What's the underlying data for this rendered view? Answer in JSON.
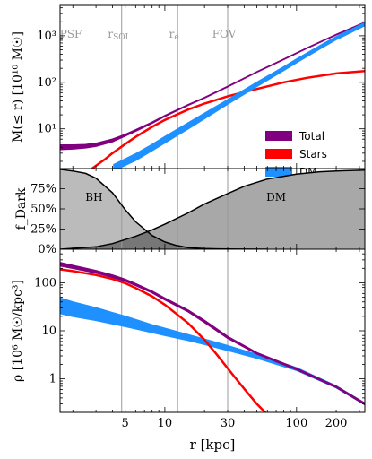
{
  "chart_data": {
    "type": "line",
    "xlabel": "r [kpc]",
    "x_scale": "log",
    "xlim": [
      1.6,
      330
    ],
    "x_ticks": [
      {
        "value": 5,
        "label": "5"
      },
      {
        "value": 10,
        "label": "10"
      },
      {
        "value": 30,
        "label": "30"
      },
      {
        "value": 100,
        "label": "100"
      },
      {
        "value": 200,
        "label": "200"
      }
    ],
    "vertical_lines": [
      {
        "x": 4.7,
        "label": ""
      },
      {
        "x": 12.5,
        "label": ""
      },
      {
        "x": 30,
        "label": ""
      }
    ],
    "vertical_line_labels": [
      {
        "x": 1.75,
        "label": "PSF"
      },
      {
        "x": 4.7,
        "label": "r",
        "sub": "SOI"
      },
      {
        "x": 12.5,
        "label": "r",
        "sub": "e"
      },
      {
        "x": 30,
        "label": "FOV"
      }
    ],
    "colors": {
      "total": "#800080",
      "stars": "#ff0000",
      "dm": "#1e90ff",
      "fill_bh": "#bbbbbb",
      "fill_dm": "#a8a8a8",
      "overlap": "#777777"
    },
    "legend": {
      "placement": "lower-right of top panel",
      "entries": [
        {
          "key": "total",
          "label": "Total"
        },
        {
          "key": "stars",
          "label": "Stars"
        },
        {
          "key": "dm",
          "label": "DM"
        }
      ]
    },
    "panels": [
      {
        "id": "mass",
        "ylabel": "M(≤ r) [10¹⁰ M☉]",
        "y_scale": "log",
        "ylim": [
          1.4,
          4500
        ],
        "y_ticks": [
          {
            "value": 10,
            "label": "10¹"
          },
          {
            "value": 100,
            "label": "10²"
          },
          {
            "value": 1000,
            "label": "10³"
          }
        ],
        "series": [
          {
            "key": "total",
            "name": "Total",
            "band": true,
            "x": [
              1.6,
              2,
              2.5,
              3,
              4,
              5,
              6,
              8,
              10,
              15,
              20,
              30,
              50,
              80,
              120,
              200,
              330
            ],
            "lo": [
              3.6,
              3.7,
              3.9,
              4.2,
              5.3,
              7.0,
              8.9,
              13.2,
              18.5,
              32,
              46,
              80,
              165,
              310,
              540,
              1050,
              1900
            ],
            "hi": [
              4.5,
              4.5,
              4.6,
              4.9,
              6.0,
              7.6,
              9.5,
              13.9,
              19.3,
              33,
              47,
              82,
              168,
              315,
              550,
              1070,
              1950
            ]
          },
          {
            "key": "stars",
            "name": "Stars",
            "band": false,
            "x": [
              2.8,
              3.5,
              4,
              5,
              6,
              8,
              10,
              15,
              20,
              30,
              50,
              80,
              120,
              200,
              330
            ],
            "y": [
              1.4,
              2.2,
              3.0,
              4.7,
              6.7,
              11,
              15.5,
              26,
              35,
              50,
              72,
              100,
              125,
              155,
              175
            ]
          },
          {
            "key": "dm",
            "name": "DM",
            "band": true,
            "x": [
              4.1,
              5,
              6,
              8,
              10,
              15,
              20,
              30,
              50,
              80,
              100,
              150,
              200,
              330
            ],
            "lo": [
              1.25,
              1.65,
              2.1,
              3.4,
              5.0,
              10,
              16.5,
              34,
              82,
              180,
              265,
              520,
              830,
              1650
            ],
            "hi": [
              1.7,
              2.25,
              2.9,
              4.6,
              6.8,
              13.4,
              21.5,
              42,
              100,
              215,
              315,
              610,
              960,
              1900
            ]
          }
        ]
      },
      {
        "id": "fraction",
        "ylabel": "f_Dark",
        "y_scale": "linear",
        "ylim": [
          0,
          1
        ],
        "y_ticks": [
          {
            "value": 0,
            "label": "0%"
          },
          {
            "value": 0.25,
            "label": "25%"
          },
          {
            "value": 0.5,
            "label": "50%"
          },
          {
            "value": 0.75,
            "label": "75%"
          }
        ],
        "annotations": [
          {
            "text": "BH",
            "x": 2.9,
            "y": 0.6
          },
          {
            "text": "DM",
            "x": 70,
            "y": 0.6
          }
        ],
        "series": [
          {
            "key": "bh",
            "name": "BH",
            "x": [
              1.6,
              2,
              2.5,
              3,
              4,
              5,
              6,
              8,
              10,
              12,
              15,
              20,
              25,
              30,
              40,
              60
            ],
            "y": [
              0.99,
              0.97,
              0.94,
              0.88,
              0.7,
              0.49,
              0.34,
              0.17,
              0.09,
              0.05,
              0.02,
              0.008,
              0.004,
              0.002,
              0.001,
              0
            ]
          },
          {
            "key": "dm",
            "name": "DM",
            "x": [
              1.6,
              3,
              4,
              5,
              6,
              8,
              10,
              15,
              20,
              30,
              40,
              60,
              100,
              150,
              200,
              330
            ],
            "y": [
              0,
              0.03,
              0.07,
              0.12,
              0.16,
              0.24,
              0.31,
              0.45,
              0.56,
              0.69,
              0.78,
              0.87,
              0.93,
              0.96,
              0.97,
              0.98
            ]
          }
        ]
      },
      {
        "id": "density",
        "ylabel": "ρ [10⁶ M☉/kpc³]",
        "y_scale": "log",
        "ylim": [
          0.2,
          500
        ],
        "y_ticks": [
          {
            "value": 1,
            "label": "1"
          },
          {
            "value": 10,
            "label": "10"
          },
          {
            "value": 100,
            "label": "100"
          }
        ],
        "series": [
          {
            "key": "dm",
            "name": "DM",
            "band": true,
            "x": [
              1.6,
              2,
              3,
              5,
              8,
              10,
              15,
              20,
              30,
              50,
              100,
              200,
              330
            ],
            "lo": [
              23,
              20,
              16.5,
              12.3,
              9.2,
              8.0,
              6.3,
              5.2,
              3.9,
              2.7,
              1.5,
              0.65,
              0.29
            ],
            "hi": [
              48,
              40,
              30,
              20,
              13.3,
              11.3,
              8.3,
              6.7,
              4.9,
              3.2,
              1.7,
              0.71,
              0.31
            ]
          },
          {
            "key": "stars",
            "name": "Stars",
            "band": false,
            "x": [
              1.6,
              2,
              3,
              4,
              5,
              6,
              8,
              10,
              15,
              20,
              25,
              30,
              40,
              50,
              60
            ],
            "y": [
              190,
              175,
              145,
              120,
              98,
              78,
              52,
              35,
              14.5,
              6.5,
              3.1,
              1.65,
              0.62,
              0.3,
              0.18
            ]
          },
          {
            "key": "total",
            "name": "Total",
            "band": true,
            "x": [
              1.6,
              2,
              3,
              4,
              5,
              6,
              8,
              10,
              15,
              20,
              30,
              50,
              100,
              200,
              330
            ],
            "lo": [
              225,
              200,
              160,
              130,
              108,
              88,
              62,
              44,
              25,
              15,
              7.0,
              3.3,
              1.55,
              0.66,
              0.29
            ],
            "hi": [
              265,
              230,
              180,
              145,
              118,
              96,
              67,
              48,
              27,
              16.5,
              7.6,
              3.5,
              1.65,
              0.7,
              0.31
            ]
          }
        ]
      }
    ]
  }
}
